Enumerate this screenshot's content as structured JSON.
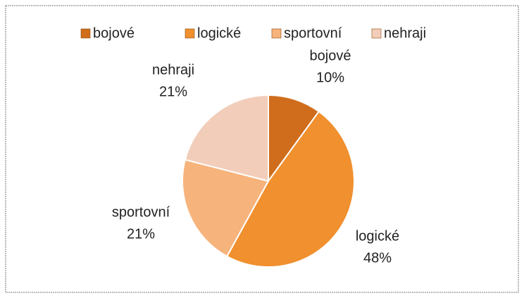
{
  "chart_data": {
    "type": "pie",
    "categories": [
      "bojové",
      "logické",
      "sportovní",
      "nehraji"
    ],
    "values": [
      10,
      48,
      21,
      21
    ],
    "value_labels": [
      "10%",
      "48%",
      "21%",
      "21%"
    ],
    "colors": [
      "#cf6d1c",
      "#f0902e",
      "#f7b37c",
      "#f2cdb9"
    ],
    "legend": "top"
  }
}
